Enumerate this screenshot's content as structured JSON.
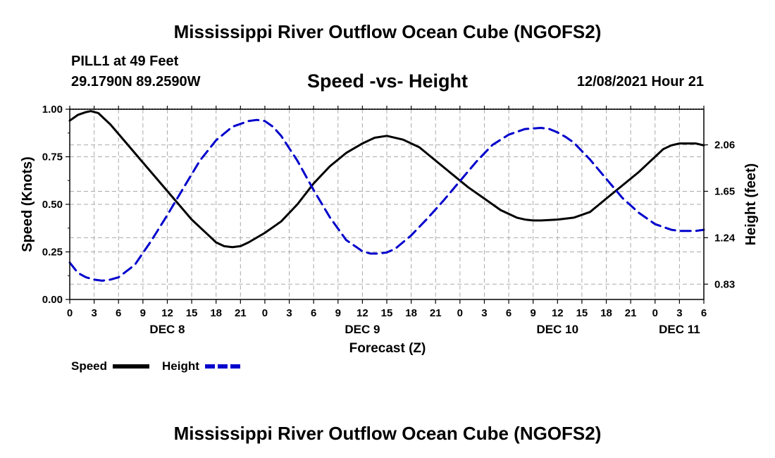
{
  "page": {
    "title": "Mississippi River Outflow Ocean Cube (NGOFS2)",
    "station": "PILL1 at 49 Feet",
    "coords": "29.1790N  89.2590W",
    "subtitle": "Speed -vs- Height",
    "datetime": "12/08/2021 Hour 21",
    "footer_title": "Mississippi River Outflow Ocean Cube (NGOFS2)"
  },
  "chart_data": {
    "type": "line",
    "title": "Speed -vs- Height",
    "xlabel": "Forecast (Z)",
    "ylabel": "Speed (Knots)",
    "y2label": "Height (feet)",
    "xlim": [
      0,
      78
    ],
    "ylim": [
      0,
      1
    ],
    "y2lim": [
      0.6947,
      2.3747
    ],
    "x_ticks": [
      0,
      3,
      6,
      9,
      12,
      15,
      18,
      21,
      24,
      27,
      30,
      33,
      36,
      39,
      42,
      45,
      48,
      51,
      54,
      57,
      60,
      63,
      66,
      69,
      72,
      75,
      78
    ],
    "x_tick_labels": [
      "0",
      "3",
      "6",
      "9",
      "12",
      "15",
      "18",
      "21",
      "0",
      "3",
      "6",
      "9",
      "12",
      "15",
      "18",
      "21",
      "0",
      "3",
      "6",
      "9",
      "12",
      "15",
      "18",
      "21",
      "0",
      "3",
      "6"
    ],
    "y_ticks": [
      0,
      0.25,
      0.5,
      0.75,
      1.0
    ],
    "y_tick_labels": [
      "0.00",
      "0.25",
      "0.50",
      "0.75",
      "1.00"
    ],
    "y2_ticks": [
      0.83,
      1.24,
      1.65,
      2.06
    ],
    "y2_tick_labels": [
      "0.83",
      "1.24",
      "1.65",
      "2.06"
    ],
    "day_labels": [
      {
        "x": 12,
        "label": "DEC 8"
      },
      {
        "x": 36,
        "label": "DEC 9"
      },
      {
        "x": 60,
        "label": "DEC 10"
      },
      {
        "x": 75,
        "label": "DEC 11"
      }
    ],
    "grid": true,
    "legend_position": "bottom-left",
    "series": [
      {
        "name": "Speed",
        "axis": "left",
        "color": "#000000",
        "dash": "solid",
        "x": [
          0,
          1,
          2,
          2.6,
          3.5,
          5,
          7,
          9,
          11,
          13,
          15,
          17,
          18,
          19,
          20,
          21,
          22,
          24,
          26,
          28,
          30,
          32,
          34,
          36,
          37.5,
          39,
          41,
          43,
          45,
          47,
          49,
          51,
          53,
          55,
          56,
          57,
          58,
          60,
          62,
          64,
          66,
          68,
          70,
          71,
          72,
          73,
          74,
          75,
          76,
          77,
          78
        ],
        "y": [
          0.94,
          0.97,
          0.985,
          0.99,
          0.98,
          0.92,
          0.82,
          0.72,
          0.62,
          0.52,
          0.42,
          0.34,
          0.3,
          0.28,
          0.275,
          0.28,
          0.3,
          0.35,
          0.41,
          0.5,
          0.61,
          0.7,
          0.77,
          0.82,
          0.85,
          0.86,
          0.84,
          0.8,
          0.73,
          0.66,
          0.59,
          0.53,
          0.47,
          0.43,
          0.42,
          0.415,
          0.415,
          0.42,
          0.43,
          0.46,
          0.53,
          0.6,
          0.67,
          0.71,
          0.75,
          0.79,
          0.81,
          0.82,
          0.82,
          0.82,
          0.81
        ]
      },
      {
        "name": "Height",
        "axis": "right",
        "color": "#0000cc",
        "dash": "dashed",
        "x": [
          0,
          1,
          2,
          3,
          4,
          5,
          6,
          8,
          10,
          12,
          14,
          16,
          18,
          20,
          22,
          23,
          24,
          25,
          26,
          28,
          30,
          32,
          34,
          36,
          37,
          38,
          39,
          40,
          42,
          44,
          46,
          48,
          50,
          52,
          54,
          56,
          58,
          59,
          60,
          61,
          62,
          64,
          66,
          68,
          70,
          72,
          74,
          75,
          76,
          77,
          78
        ],
        "y": [
          1.02,
          0.93,
          0.89,
          0.87,
          0.86,
          0.87,
          0.89,
          1.0,
          1.21,
          1.44,
          1.68,
          1.92,
          2.1,
          2.22,
          2.27,
          2.28,
          2.27,
          2.22,
          2.14,
          1.92,
          1.66,
          1.42,
          1.22,
          1.12,
          1.1,
          1.1,
          1.11,
          1.14,
          1.26,
          1.41,
          1.57,
          1.74,
          1.91,
          2.06,
          2.15,
          2.2,
          2.21,
          2.2,
          2.17,
          2.13,
          2.08,
          1.93,
          1.76,
          1.59,
          1.46,
          1.36,
          1.31,
          1.3,
          1.3,
          1.3,
          1.31
        ]
      }
    ],
    "legend": [
      {
        "label": "Speed",
        "color": "#000000",
        "dash": "solid"
      },
      {
        "label": "Height",
        "color": "#0000cc",
        "dash": "dashed"
      }
    ]
  }
}
